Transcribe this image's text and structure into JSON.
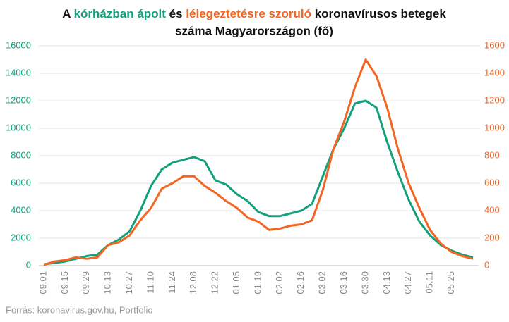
{
  "chart_data": {
    "type": "line",
    "title_parts": [
      "A",
      "és",
      "koronavírusos betegek",
      "száma Magyarországon  (fő)"
    ],
    "source": "Forrás: koronavirus.gov.hu, Portfolio",
    "categories": [
      "09.01",
      null,
      "09.15",
      null,
      "09.29",
      null,
      "10.13",
      null,
      "10.27",
      null,
      "11.10",
      null,
      "11.24",
      null,
      "12.08",
      null,
      "12.22",
      null,
      "01.05",
      null,
      "01.19",
      null,
      "02.02",
      null,
      "02.16",
      null,
      "03.02",
      null,
      "03.16",
      null,
      "03.30",
      null,
      "04.13",
      null,
      "04.27",
      null,
      "05.11",
      null,
      "05.25",
      null,
      null
    ],
    "series": [
      {
        "name": "kórházban ápolt",
        "color": "#13a07c",
        "values": [
          100,
          200,
          300,
          500,
          700,
          800,
          1500,
          1900,
          2500,
          4000,
          5800,
          7000,
          7500,
          7700,
          7900,
          7600,
          6200,
          5900,
          5200,
          4700,
          3900,
          3600,
          3600,
          3800,
          4000,
          4500,
          6500,
          8500,
          10000,
          11800,
          12000,
          11500,
          9000,
          6800,
          4800,
          3200,
          2200,
          1500,
          1100,
          800,
          600
        ]
      },
      {
        "name": "lélegeztetésre szoruló",
        "color": "#f26522",
        "axis": "y2",
        "values": [
          5,
          30,
          40,
          60,
          50,
          60,
          150,
          170,
          220,
          330,
          420,
          560,
          600,
          650,
          650,
          580,
          530,
          470,
          420,
          350,
          320,
          260,
          270,
          290,
          300,
          330,
          550,
          850,
          1050,
          1300,
          1500,
          1380,
          1150,
          850,
          600,
          420,
          260,
          160,
          100,
          70,
          50
        ]
      }
    ],
    "ylim": [
      0,
      16000
    ],
    "yticks": [
      0,
      2000,
      4000,
      6000,
      8000,
      10000,
      12000,
      14000,
      16000
    ],
    "y2lim": [
      0,
      1600
    ],
    "y2ticks": [
      0,
      200,
      400,
      600,
      800,
      1000,
      1200,
      1400,
      1600
    ],
    "grid": true
  }
}
